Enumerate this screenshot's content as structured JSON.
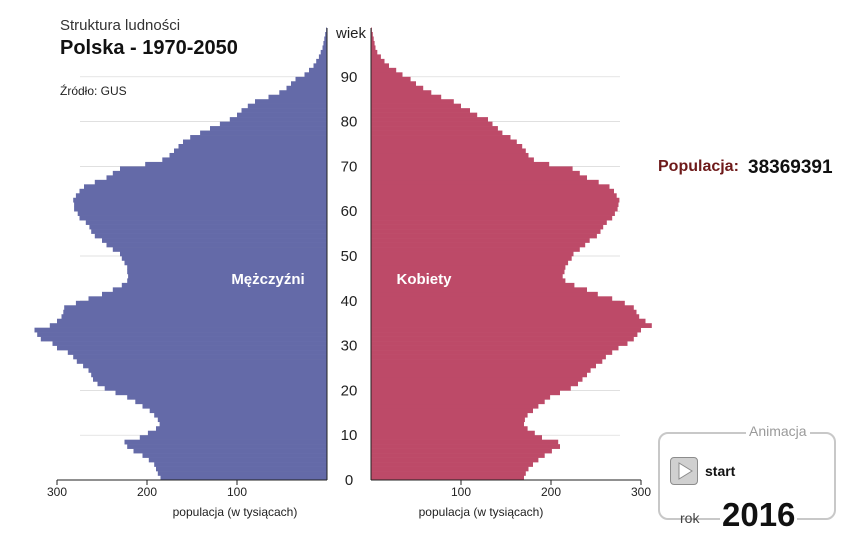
{
  "header": {
    "subtitle": "Struktura ludności",
    "title": "Polska - 1970-2050",
    "source": "Źródło: GUS"
  },
  "population": {
    "label": "Populacja:",
    "value": "38369391"
  },
  "animation": {
    "title": "Animacja",
    "start_label": "start",
    "year_label": "rok",
    "year": "2016"
  },
  "chart_data": {
    "type": "bar",
    "subtype": "population-pyramid",
    "orientation": "horizontal",
    "y_axis_label": "wiek",
    "y_ticks": [
      0,
      10,
      20,
      30,
      40,
      50,
      60,
      70,
      80,
      90
    ],
    "x_ticks_left": [
      300,
      200,
      100
    ],
    "x_ticks_right": [
      100,
      200,
      300
    ],
    "xlim": [
      0,
      300
    ],
    "xlabel_left": "populacja (w tysiącach)",
    "xlabel_right": "populacja (w tysiącach)",
    "colors": {
      "male": "#646aa8",
      "female": "#bd4a68"
    },
    "series": [
      {
        "name": "Mężczyźni",
        "ages": [
          0,
          1,
          2,
          3,
          4,
          5,
          6,
          7,
          8,
          9,
          10,
          11,
          12,
          13,
          14,
          15,
          16,
          17,
          18,
          19,
          20,
          21,
          22,
          23,
          24,
          25,
          26,
          27,
          28,
          29,
          30,
          31,
          32,
          33,
          34,
          35,
          36,
          37,
          38,
          39,
          40,
          41,
          42,
          43,
          44,
          45,
          46,
          47,
          48,
          49,
          50,
          51,
          52,
          53,
          54,
          55,
          56,
          57,
          58,
          59,
          60,
          61,
          62,
          63,
          64,
          65,
          66,
          67,
          68,
          69,
          70,
          71,
          72,
          73,
          74,
          75,
          76,
          77,
          78,
          79,
          80,
          81,
          82,
          83,
          84,
          85,
          86,
          87,
          88,
          89,
          90,
          91,
          92,
          93,
          94,
          95,
          96,
          97,
          98,
          99,
          100
        ],
        "values": [
          185,
          188,
          190,
          192,
          198,
          205,
          215,
          222,
          225,
          208,
          199,
          190,
          186,
          188,
          192,
          197,
          205,
          213,
          222,
          235,
          247,
          255,
          260,
          262,
          265,
          271,
          278,
          282,
          288,
          300,
          305,
          318,
          322,
          325,
          308,
          300,
          295,
          293,
          292,
          279,
          265,
          250,
          238,
          228,
          222,
          221,
          222,
          222,
          225,
          228,
          230,
          238,
          245,
          250,
          258,
          262,
          264,
          268,
          275,
          277,
          281,
          281,
          282,
          279,
          275,
          270,
          258,
          245,
          238,
          230,
          202,
          183,
          175,
          170,
          165,
          160,
          152,
          141,
          130,
          119,
          108,
          100,
          95,
          88,
          80,
          65,
          53,
          45,
          40,
          35,
          25,
          20,
          15,
          12,
          9,
          7,
          5,
          4,
          3,
          2,
          1
        ]
      },
      {
        "name": "Kobiety",
        "ages": [
          0,
          1,
          2,
          3,
          4,
          5,
          6,
          7,
          8,
          9,
          10,
          11,
          12,
          13,
          14,
          15,
          16,
          17,
          18,
          19,
          20,
          21,
          22,
          23,
          24,
          25,
          26,
          27,
          28,
          29,
          30,
          31,
          32,
          33,
          34,
          35,
          36,
          37,
          38,
          39,
          40,
          41,
          42,
          43,
          44,
          45,
          46,
          47,
          48,
          49,
          50,
          51,
          52,
          53,
          54,
          55,
          56,
          57,
          58,
          59,
          60,
          61,
          62,
          63,
          64,
          65,
          66,
          67,
          68,
          69,
          70,
          71,
          72,
          73,
          74,
          75,
          76,
          77,
          78,
          79,
          80,
          81,
          82,
          83,
          84,
          85,
          86,
          87,
          88,
          89,
          90,
          91,
          92,
          93,
          94,
          95,
          96,
          97,
          98,
          99,
          100
        ],
        "values": [
          170,
          172,
          175,
          180,
          186,
          193,
          201,
          210,
          208,
          190,
          182,
          174,
          170,
          171,
          174,
          180,
          186,
          193,
          199,
          210,
          222,
          230,
          235,
          240,
          244,
          250,
          257,
          261,
          268,
          275,
          285,
          292,
          296,
          300,
          312,
          305,
          298,
          295,
          292,
          282,
          268,
          252,
          240,
          226,
          216,
          213,
          215,
          216,
          219,
          223,
          225,
          232,
          238,
          243,
          251,
          255,
          258,
          262,
          268,
          271,
          274,
          275,
          276,
          273,
          270,
          265,
          253,
          240,
          232,
          224,
          198,
          181,
          175,
          172,
          168,
          162,
          155,
          146,
          141,
          135,
          130,
          118,
          110,
          100,
          92,
          78,
          67,
          58,
          50,
          44,
          35,
          28,
          20,
          15,
          11,
          7,
          5,
          4,
          3,
          2,
          1
        ]
      }
    ],
    "annotations": [
      "Mężczyźni",
      "Kobiety"
    ]
  }
}
